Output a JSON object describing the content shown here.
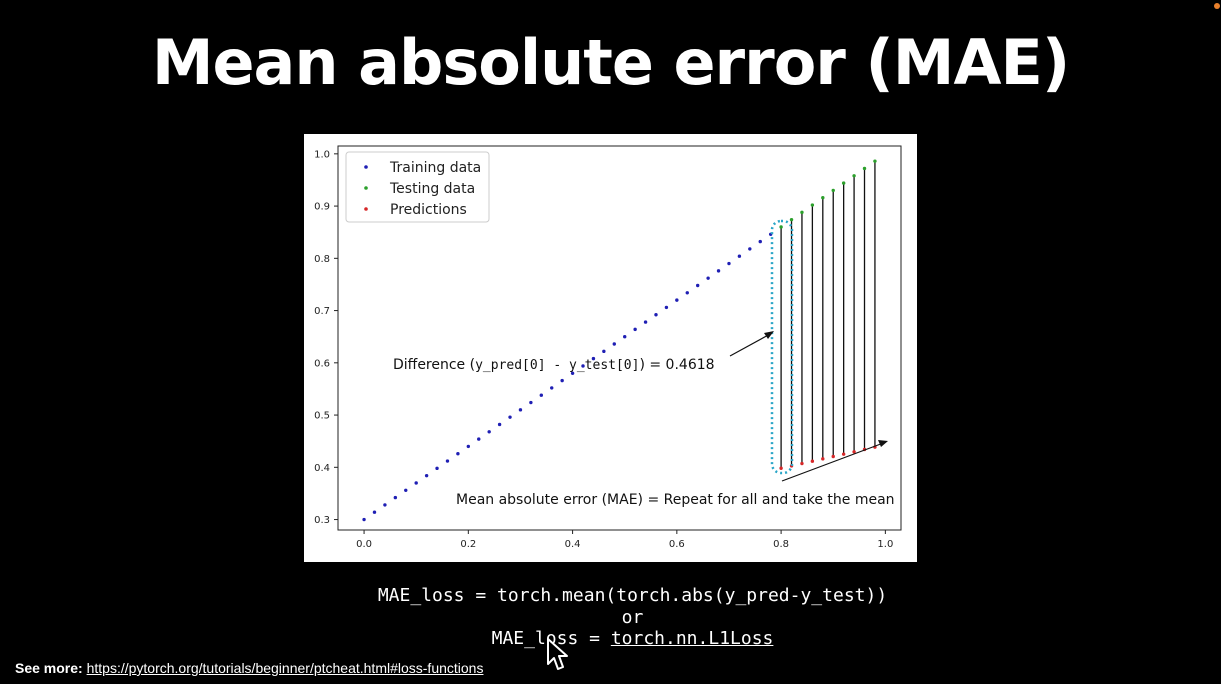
{
  "slide": {
    "title": "Mean absolute error (MAE)",
    "code_line1": "MAE_loss = torch.mean(torch.abs(y_pred-y_test))",
    "code_or": "or",
    "code_line2_prefix": "MAE_loss = ",
    "code_line2_link": "torch.nn.L1Loss",
    "footer_label": "See more:",
    "footer_url": "https://pytorch.org/tutorials/beginner/ptcheat.html#loss-functions",
    "cursor_icon": "mouse-pointer-icon",
    "recording_indicator_color": "#e8802c"
  },
  "chart_data": {
    "type": "scatter",
    "xlim": [
      -0.05,
      1.03
    ],
    "ylim": [
      0.28,
      1.015
    ],
    "x_ticks": [
      "0.0",
      "0.2",
      "0.4",
      "0.6",
      "0.8",
      "1.0"
    ],
    "y_ticks": [
      "0.3",
      "0.4",
      "0.5",
      "0.6",
      "0.7",
      "0.8",
      "0.9",
      "1.0"
    ],
    "x_tick_values": [
      0.0,
      0.2,
      0.4,
      0.6,
      0.8,
      1.0
    ],
    "y_tick_values": [
      0.3,
      0.4,
      0.5,
      0.6,
      0.7,
      0.8,
      0.9,
      1.0
    ],
    "grid": false,
    "legend_position": "top-left",
    "series": [
      {
        "name": "Training data",
        "color": "#1f1fb4",
        "x": [
          0.0,
          0.02,
          0.04,
          0.06,
          0.08,
          0.1,
          0.12,
          0.14,
          0.16,
          0.18,
          0.2,
          0.22,
          0.24,
          0.26,
          0.28,
          0.3,
          0.32,
          0.34,
          0.36,
          0.38,
          0.4,
          0.42,
          0.44,
          0.46,
          0.48,
          0.5,
          0.52,
          0.54,
          0.56,
          0.58,
          0.6,
          0.62,
          0.64,
          0.66,
          0.68,
          0.7,
          0.72,
          0.74,
          0.76,
          0.78
        ],
        "y": [
          0.3,
          0.314,
          0.328,
          0.342,
          0.356,
          0.37,
          0.384,
          0.398,
          0.412,
          0.426,
          0.44,
          0.454,
          0.468,
          0.482,
          0.496,
          0.51,
          0.524,
          0.538,
          0.552,
          0.566,
          0.58,
          0.594,
          0.608,
          0.622,
          0.636,
          0.65,
          0.664,
          0.678,
          0.692,
          0.706,
          0.72,
          0.734,
          0.748,
          0.762,
          0.776,
          0.79,
          0.804,
          0.818,
          0.832,
          0.846
        ]
      },
      {
        "name": "Testing data",
        "color": "#2ca02c",
        "x": [
          0.8,
          0.82,
          0.84,
          0.86,
          0.88,
          0.9,
          0.92,
          0.94,
          0.96,
          0.98
        ],
        "y": [
          0.86,
          0.874,
          0.888,
          0.902,
          0.916,
          0.93,
          0.944,
          0.958,
          0.972,
          0.986
        ]
      },
      {
        "name": "Predictions",
        "color": "#d62728",
        "x": [
          0.8,
          0.82,
          0.84,
          0.86,
          0.88,
          0.9,
          0.92,
          0.94,
          0.96,
          0.98
        ],
        "y": [
          0.3982,
          0.4027,
          0.4072,
          0.4117,
          0.4162,
          0.4207,
          0.4252,
          0.4297,
          0.4342,
          0.4387
        ]
      }
    ],
    "annotations": [
      {
        "text_prefix": "Difference (",
        "text_code": "y_pred[0]  - y_test[0]",
        "text_suffix": ") = 0.4618"
      },
      {
        "text": "Mean absolute error (MAE) = Repeat for all and take the mean"
      }
    ]
  }
}
